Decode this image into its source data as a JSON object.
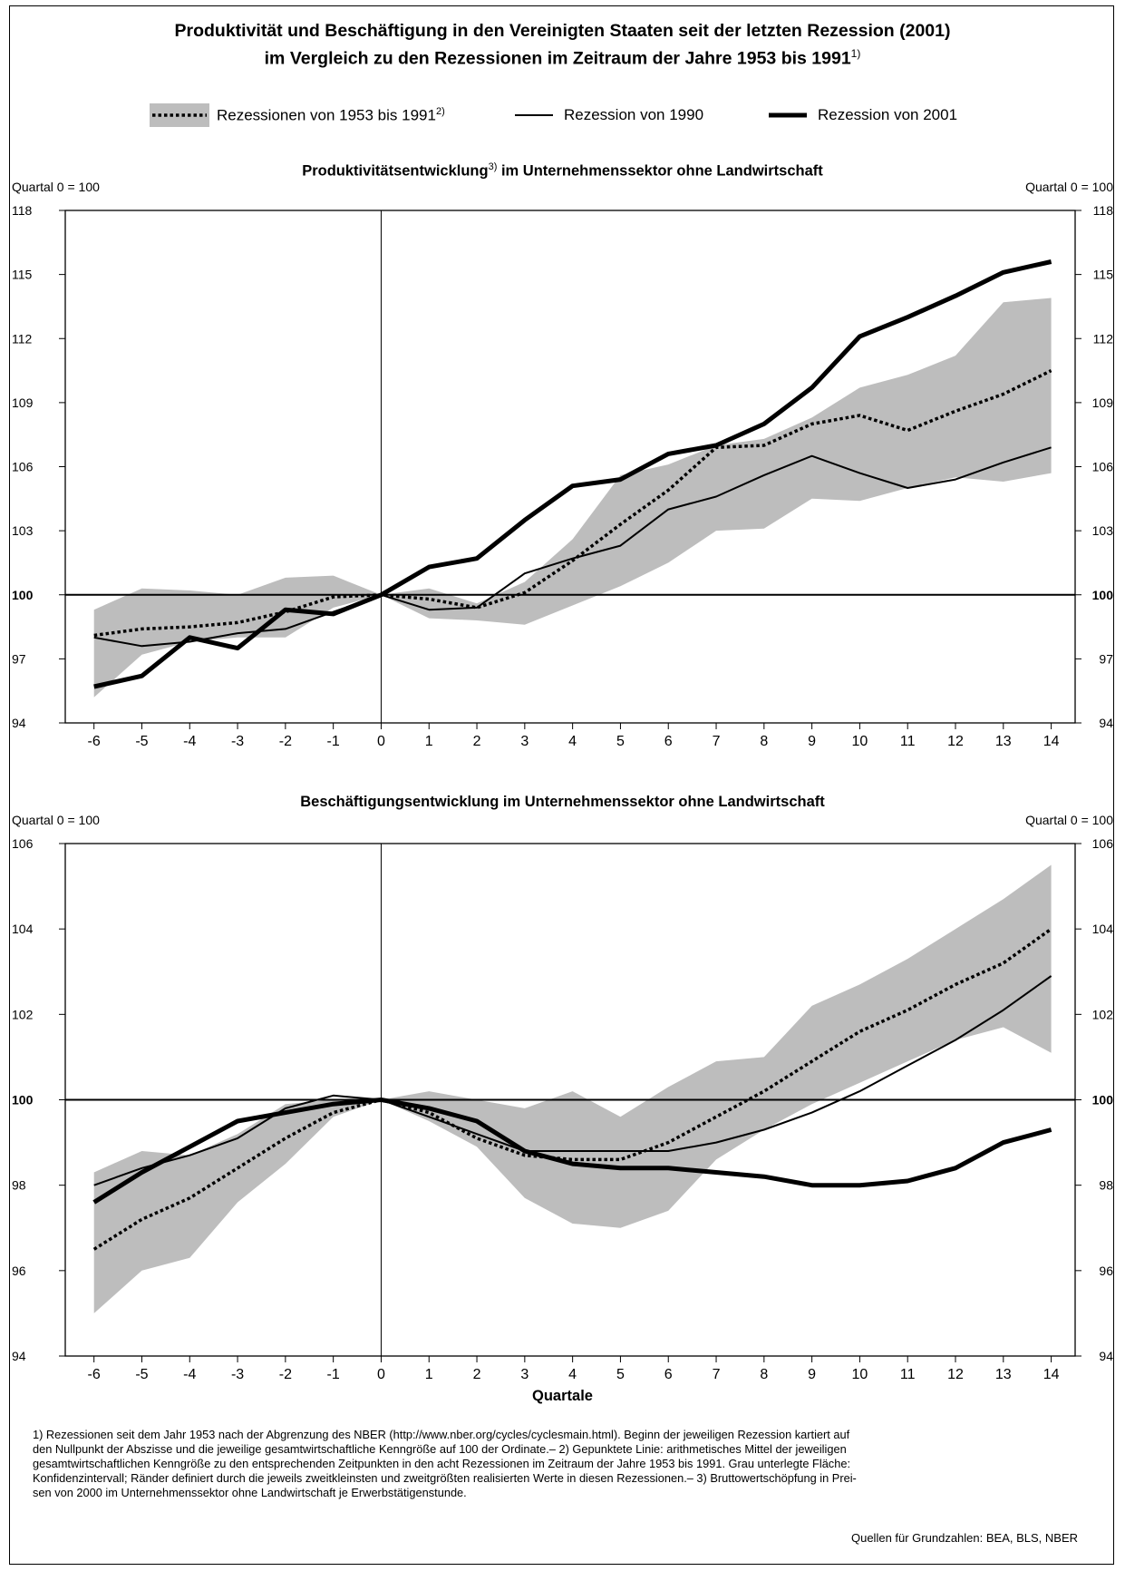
{
  "title": {
    "line1": "Produktivität und Beschäftigung in den Vereinigten Staaten seit der letzten Rezession (2001)",
    "line2": "im Vergleich zu den Rezessionen im Zeitraum der Jahre 1953 bis 1991",
    "line2_note": "1)"
  },
  "legend": [
    {
      "label": "Rezessionen von 1953 bis 1991",
      "note": "2)",
      "style": "dotted-band"
    },
    {
      "label": "Rezession von 1990",
      "note": "",
      "style": "thin"
    },
    {
      "label": "Rezession von 2001",
      "note": "",
      "style": "thick"
    }
  ],
  "colors": {
    "band": "#bdbdbd",
    "line": "#000000"
  },
  "chart_data": [
    {
      "type": "line",
      "title": "Produktivitätsentwicklung",
      "title_note": "3)",
      "title_rest": " im Unternehmenssektor ohne Landwirtschaft",
      "unit_left": "Quartal 0 = 100",
      "unit_right": "Quartal 0 = 100",
      "x": [
        -6,
        -5,
        -4,
        -3,
        -2,
        -1,
        0,
        1,
        2,
        3,
        4,
        5,
        6,
        7,
        8,
        9,
        10,
        11,
        12,
        13,
        14
      ],
      "x_ticks": [
        "-6",
        "-5",
        "-4",
        "-3",
        "-2",
        "-1",
        "0",
        "1",
        "2",
        "3",
        "4",
        "5",
        "6",
        "7",
        "8",
        "9",
        "10",
        "11",
        "12",
        "13",
        "14"
      ],
      "y_ticks": [
        "94",
        "97",
        "100",
        "103",
        "106",
        "109",
        "112",
        "115",
        "118"
      ],
      "ylim": [
        94,
        118
      ],
      "xlim": [
        -6.6,
        14.5
      ],
      "band": {
        "name": "Rezessionen von 1953 bis 1991",
        "lower": [
          95.2,
          97.2,
          97.8,
          98.0,
          98.0,
          99.4,
          100,
          98.9,
          98.8,
          98.6,
          99.5,
          100.4,
          101.5,
          103.0,
          103.1,
          104.5,
          104.4,
          105.0,
          105.5,
          105.3,
          105.7
        ],
        "upper": [
          99.3,
          100.3,
          100.2,
          100.0,
          100.8,
          100.9,
          100,
          100.3,
          99.6,
          100.6,
          102.6,
          105.6,
          106.1,
          107.0,
          107.3,
          108.3,
          109.7,
          110.3,
          111.2,
          113.7,
          113.9
        ]
      },
      "series": [
        {
          "name": "Rezessionen von 1953 bis 1991",
          "style": "dotted",
          "values": [
            98.1,
            98.4,
            98.5,
            98.7,
            99.2,
            99.9,
            100,
            99.8,
            99.4,
            100.1,
            101.6,
            103.3,
            104.9,
            106.9,
            107.0,
            108.0,
            108.4,
            107.7,
            108.6,
            109.4,
            110.5
          ]
        },
        {
          "name": "Rezession von 1990",
          "style": "thin",
          "values": [
            98.0,
            97.6,
            97.8,
            98.2,
            98.4,
            99.2,
            100,
            99.3,
            99.4,
            101.0,
            101.7,
            102.3,
            104.0,
            104.6,
            105.6,
            106.5,
            105.7,
            105.0,
            105.4,
            106.2,
            106.9
          ]
        },
        {
          "name": "Rezession von 2001",
          "style": "thick",
          "values": [
            95.7,
            96.2,
            98.0,
            97.5,
            99.3,
            99.1,
            100,
            101.3,
            101.7,
            103.5,
            105.1,
            105.4,
            106.6,
            107.0,
            108.0,
            109.7,
            112.1,
            113.0,
            114.0,
            115.1,
            115.6
          ]
        }
      ]
    },
    {
      "type": "line",
      "title": "Beschäftigungsentwicklung im Unternehmenssektor ohne Landwirtschaft",
      "title_note": "",
      "title_rest": "",
      "unit_left": "Quartal 0 = 100",
      "unit_right": "Quartal 0 = 100",
      "xlabel": "Quartale",
      "x": [
        -6,
        -5,
        -4,
        -3,
        -2,
        -1,
        0,
        1,
        2,
        3,
        4,
        5,
        6,
        7,
        8,
        9,
        10,
        11,
        12,
        13,
        14
      ],
      "x_ticks": [
        "-6",
        "-5",
        "-4",
        "-3",
        "-2",
        "-1",
        "0",
        "1",
        "2",
        "3",
        "4",
        "5",
        "6",
        "7",
        "8",
        "9",
        "10",
        "11",
        "12",
        "13",
        "14"
      ],
      "y_ticks": [
        "94",
        "96",
        "98",
        "100",
        "102",
        "104",
        "106"
      ],
      "ylim": [
        94,
        106
      ],
      "xlim": [
        -6.6,
        14.5
      ],
      "band": {
        "name": "Rezessionen von 1953 bis 1991",
        "lower": [
          95.0,
          96.0,
          96.3,
          97.6,
          98.5,
          99.6,
          100,
          99.5,
          98.9,
          97.7,
          97.1,
          97.0,
          97.4,
          98.6,
          99.3,
          99.9,
          100.4,
          100.9,
          101.4,
          101.7,
          101.1
        ],
        "upper": [
          98.3,
          98.8,
          98.7,
          99.2,
          99.9,
          100.0,
          100,
          100.2,
          100.0,
          99.8,
          100.2,
          99.6,
          100.3,
          100.9,
          101.0,
          102.2,
          102.7,
          103.3,
          104.0,
          104.7,
          105.5
        ]
      },
      "series": [
        {
          "name": "Rezessionen von 1953 bis 1991",
          "style": "dotted",
          "values": [
            96.5,
            97.2,
            97.7,
            98.4,
            99.1,
            99.7,
            100,
            99.7,
            99.1,
            98.7,
            98.6,
            98.6,
            99.0,
            99.6,
            100.2,
            100.9,
            101.6,
            102.1,
            102.7,
            103.2,
            104.0
          ]
        },
        {
          "name": "Rezession von 1990",
          "style": "thin",
          "values": [
            98.0,
            98.4,
            98.7,
            99.1,
            99.8,
            100.1,
            100,
            99.6,
            99.2,
            98.8,
            98.8,
            98.8,
            98.8,
            99.0,
            99.3,
            99.7,
            100.2,
            100.8,
            101.4,
            102.1,
            102.9
          ]
        },
        {
          "name": "Rezession von 2001",
          "style": "thick",
          "values": [
            97.6,
            98.3,
            98.9,
            99.5,
            99.7,
            99.9,
            100,
            99.8,
            99.5,
            98.8,
            98.5,
            98.4,
            98.4,
            98.3,
            98.2,
            98.0,
            98.0,
            98.1,
            98.4,
            99.0,
            99.3
          ]
        }
      ]
    }
  ],
  "footnotes": [
    "1) Rezessionen seit dem Jahr 1953 nach der Abgrenzung des NBER (http://www.nber.org/cycles/cyclesmain.html). Beginn der jeweiligen Rezession kartiert auf",
    "den Nullpunkt der Abszisse und die jeweilige gesamtwirtschaftliche Kenngröße auf 100 der Ordinate.– 2) Gepunktete Linie: arithmetisches Mittel der jeweiligen",
    "gesamtwirtschaftlichen Kenngröße zu den entsprechenden Zeitpunkten in den acht Rezessionen im Zeitraum der Jahre 1953 bis 1991. Grau unterlegte Fläche:",
    "Konfidenzintervall; Ränder definiert durch die jeweils zweitkleinsten und zweitgrößten realisierten Werte in diesen Rezessionen.– 3) Bruttowertschöpfung in Prei-",
    "sen von 2000 im Unternehmenssektor ohne Landwirtschaft je Erwerbstätigenstunde."
  ],
  "sources": "Quellen für Grundzahlen: BEA, BLS, NBER"
}
